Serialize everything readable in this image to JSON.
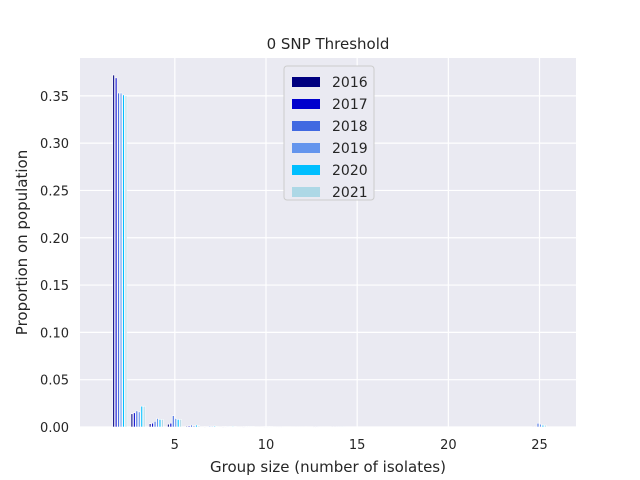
{
  "chart_data": {
    "type": "bar",
    "title": "0 SNP Threshold",
    "xlabel": "Group size (number of isolates)",
    "ylabel": "Proportion on population",
    "xlim": [
      -0.2,
      27.0
    ],
    "ylim": [
      0.0,
      0.39
    ],
    "xticks": [
      5,
      10,
      15,
      20,
      25
    ],
    "yticks": [
      0.0,
      0.05,
      0.1,
      0.15,
      0.2,
      0.25,
      0.3,
      0.35
    ],
    "ytick_format": 2,
    "grid": true,
    "legend_position": "top-center",
    "background": "#eaeaf2",
    "categories": [
      2,
      3,
      4,
      5,
      6,
      7,
      8,
      9,
      10,
      11,
      12,
      13,
      14,
      25
    ],
    "series": [
      {
        "name": "2016",
        "color": "#000080",
        "values": [
          0.372,
          0.014,
          0.0035,
          0.003,
          0.0009,
          0.0004,
          0.0004,
          0.0003,
          0.0002,
          0.0002,
          0.0002,
          0.0001,
          0.0001,
          0.0001
        ]
      },
      {
        "name": "2017",
        "color": "#0000cd",
        "values": [
          0.369,
          0.015,
          0.004,
          0.004,
          0.0012,
          0.0006,
          0.0005,
          0.0004,
          0.0003,
          0.0002,
          0.0002,
          0.0001,
          0.0001,
          0.0001
        ]
      },
      {
        "name": "2018",
        "color": "#4169e1",
        "values": [
          0.353,
          0.017,
          0.006,
          0.012,
          0.002,
          0.0009,
          0.0007,
          0.0005,
          0.0004,
          0.0003,
          0.0002,
          0.0002,
          0.0001,
          0.004
        ]
      },
      {
        "name": "2019",
        "color": "#6495ed",
        "values": [
          0.353,
          0.016,
          0.009,
          0.009,
          0.0015,
          0.0009,
          0.0006,
          0.0005,
          0.0004,
          0.0003,
          0.0002,
          0.0002,
          0.0001,
          0.003
        ]
      },
      {
        "name": "2020",
        "color": "#00bfff",
        "values": [
          0.351,
          0.022,
          0.008,
          0.008,
          0.002,
          0.001,
          0.0008,
          0.0006,
          0.0005,
          0.0003,
          0.0003,
          0.0002,
          0.0001,
          0.002
        ]
      },
      {
        "name": "2021",
        "color": "#add8e6",
        "values": [
          0.35,
          0.022,
          0.008,
          0.008,
          0.0015,
          0.0008,
          0.0006,
          0.0005,
          0.0004,
          0.0003,
          0.0002,
          0.0002,
          0.0001,
          0.002
        ]
      }
    ]
  }
}
